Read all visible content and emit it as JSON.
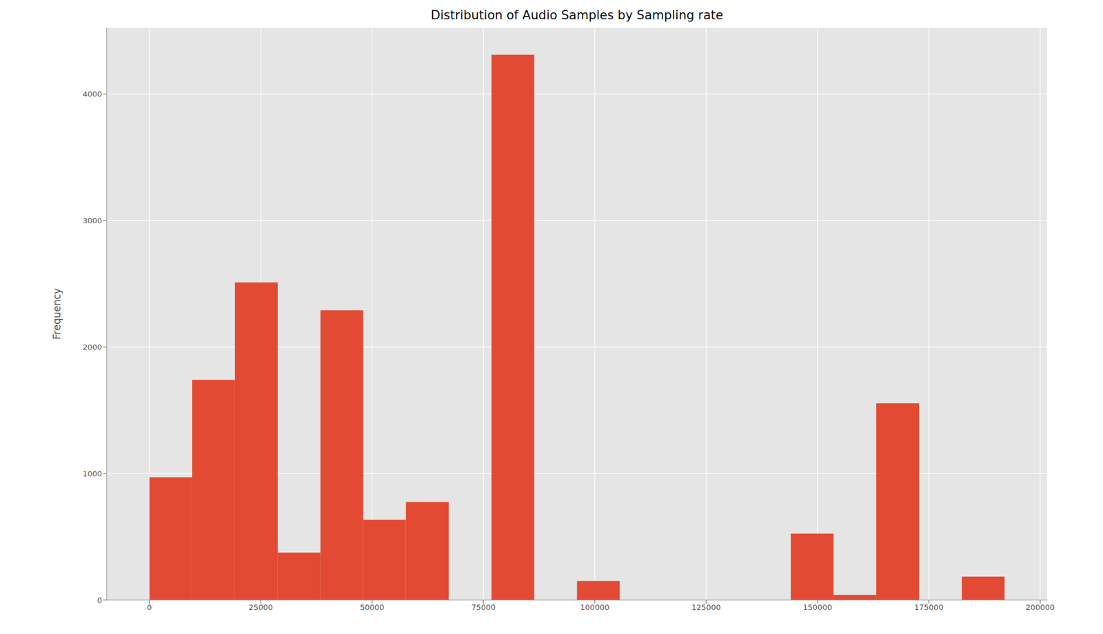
{
  "chart_data": {
    "type": "histogram",
    "title": "Distribution of Audio Samples by Sampling rate",
    "y_label": "Frequency",
    "bins": [
      0,
      9600,
      19200,
      28800,
      38400,
      48000,
      57600,
      67200,
      76800,
      86400,
      96000,
      105600,
      115200,
      124800,
      134400,
      144000,
      153600,
      163200,
      172800,
      182400,
      192000
    ],
    "values": [
      970,
      1740,
      2510,
      375,
      2290,
      635,
      775,
      0,
      4310,
      0,
      150,
      0,
      0,
      0,
      0,
      525,
      40,
      1555,
      0,
      185
    ],
    "color": "#E24A33",
    "xlim": [
      -9600,
      201600
    ],
    "ylim": [
      0,
      4525.5
    ],
    "xticks": [
      0,
      25000,
      50000,
      75000,
      100000,
      125000,
      150000,
      175000,
      200000
    ],
    "yticks": [
      0,
      1000,
      2000,
      3000,
      4000
    ],
    "grid": true
  }
}
